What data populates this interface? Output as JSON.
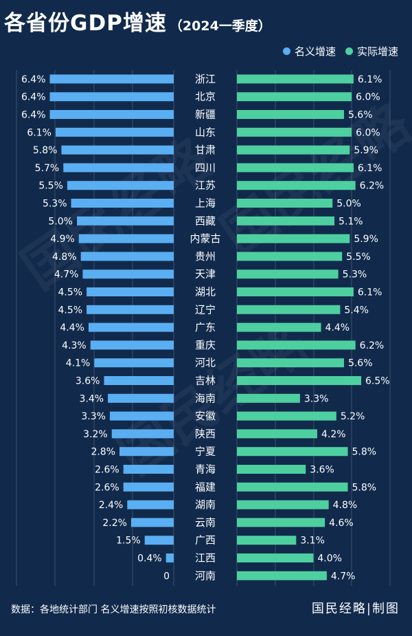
{
  "title": "各省份GDP增速",
  "subtitle": "（2024一季度）",
  "legend": [
    {
      "label": "名义增速",
      "color": "#5aaef2"
    },
    {
      "label": "实际增速",
      "color": "#4ecfa0"
    }
  ],
  "footer": {
    "source": "数据：各地统计部门 名义增速按照初核数据统计",
    "credit": "国民经略|制图"
  },
  "watermark": "国民经略",
  "chart_data": {
    "type": "bar",
    "orientation": "horizontal-butterfly",
    "categories": [
      "浙江",
      "北京",
      "新疆",
      "山东",
      "甘肃",
      "四川",
      "江苏",
      "上海",
      "西藏",
      "内蒙古",
      "贵州",
      "天津",
      "湖北",
      "辽宁",
      "广东",
      "重庆",
      "河北",
      "吉林",
      "海南",
      "安徽",
      "陕西",
      "宁夏",
      "青海",
      "福建",
      "湖南",
      "云南",
      "广西",
      "江西",
      "河南"
    ],
    "series": [
      {
        "name": "名义增速",
        "color": "#5aaef2",
        "values": [
          6.4,
          6.4,
          6.4,
          6.1,
          5.8,
          5.7,
          5.5,
          5.3,
          5.0,
          4.9,
          4.8,
          4.7,
          4.5,
          4.5,
          4.4,
          4.3,
          4.1,
          3.6,
          3.4,
          3.3,
          3.2,
          2.8,
          2.6,
          2.6,
          2.4,
          2.2,
          1.5,
          0.4,
          0
        ],
        "labels": [
          "6.4%",
          "6.4%",
          "6.4%",
          "6.1%",
          "5.8%",
          "5.7%",
          "5.5%",
          "5.3%",
          "5.0%",
          "4.9%",
          "4.8%",
          "4.7%",
          "4.5%",
          "4.5%",
          "4.4%",
          "4.3%",
          "4.1%",
          "3.6%",
          "3.4%",
          "3.3%",
          "3.2%",
          "2.8%",
          "2.6%",
          "2.6%",
          "2.4%",
          "2.2%",
          "1.5%",
          "0.4%",
          "0"
        ]
      },
      {
        "name": "实际增速",
        "color": "#4ecfa0",
        "values": [
          6.1,
          6.0,
          5.6,
          6.0,
          5.9,
          6.1,
          6.2,
          5.0,
          5.1,
          5.9,
          5.5,
          5.3,
          6.1,
          5.4,
          4.4,
          6.2,
          5.6,
          6.5,
          3.3,
          5.2,
          4.2,
          5.8,
          3.6,
          5.8,
          4.8,
          4.6,
          3.1,
          4.0,
          4.7
        ],
        "labels": [
          "6.1%",
          "6.0%",
          "5.6%",
          "6.0%",
          "5.9%",
          "6.1%",
          "6.2%",
          "5.0%",
          "5.1%",
          "5.9%",
          "5.5%",
          "5.3%",
          "6.1%",
          "5.4%",
          "4.4%",
          "6.2%",
          "5.6%",
          "6.5%",
          "3.3%",
          "5.2%",
          "4.2%",
          "5.8%",
          "3.6%",
          "5.8%",
          "4.8%",
          "4.6%",
          "3.1%",
          "4.0%",
          "4.7%"
        ]
      }
    ],
    "unit": "%",
    "grid": true,
    "legend_position": "top-right"
  }
}
